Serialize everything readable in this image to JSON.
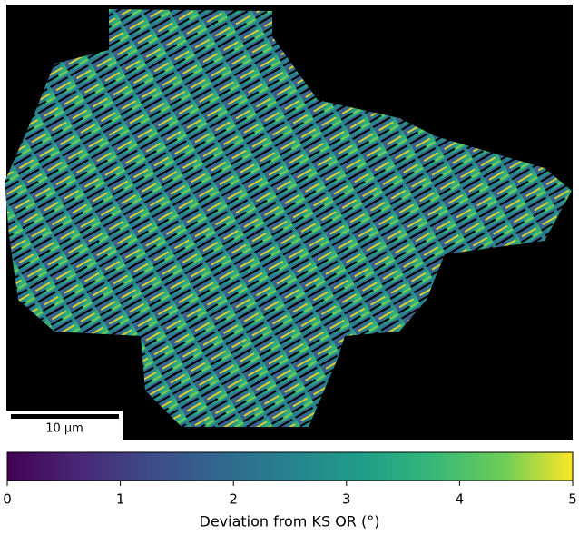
{
  "chart_data": {
    "type": "colorbar-map",
    "scale_bar": "10 µm",
    "colorbar": {
      "label": "Deviation from KS OR (°)",
      "lim": [
        0,
        5
      ],
      "ticks": [
        0,
        1,
        2,
        3,
        4,
        5
      ],
      "colormap": "viridis"
    }
  }
}
